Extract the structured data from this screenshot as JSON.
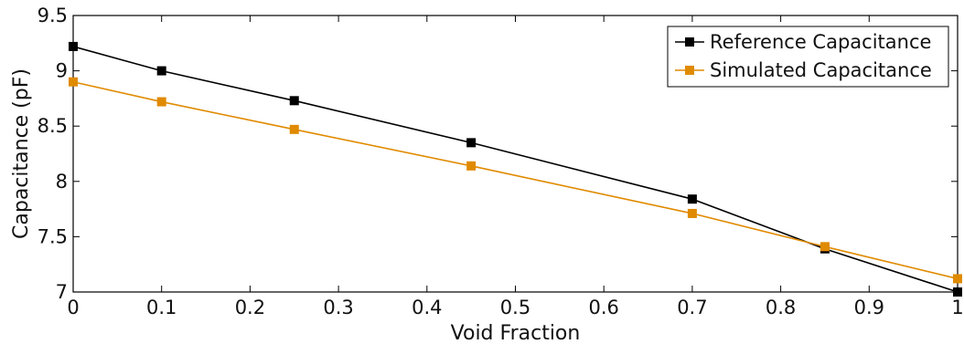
{
  "chart_data": {
    "type": "line",
    "title": "",
    "xlabel": "Void Fraction",
    "ylabel": "Capacitance (pF)",
    "xlim": [
      0,
      1
    ],
    "ylim": [
      7,
      9.5
    ],
    "xticks": [
      "0",
      "0.1",
      "0.2",
      "0.3",
      "0.4",
      "0.5",
      "0.6",
      "0.7",
      "0.8",
      "0.9",
      "1"
    ],
    "yticks": [
      "7",
      "7.5",
      "8",
      "8.5",
      "9",
      "9.5"
    ],
    "grid": false,
    "legend_position": "top-right",
    "series": [
      {
        "name": "Reference Capacitance",
        "color": "#000000",
        "marker": "square",
        "x": [
          0,
          0.1,
          0.25,
          0.45,
          0.7,
          0.85,
          1
        ],
        "y": [
          9.22,
          9.0,
          8.73,
          8.35,
          7.84,
          7.39,
          7.0
        ]
      },
      {
        "name": "Simulated Capacitance",
        "color": "#E08A00",
        "marker": "square",
        "x": [
          0,
          0.1,
          0.25,
          0.45,
          0.7,
          0.85,
          1
        ],
        "y": [
          8.9,
          8.72,
          8.47,
          8.14,
          7.71,
          7.41,
          7.12
        ]
      }
    ]
  }
}
